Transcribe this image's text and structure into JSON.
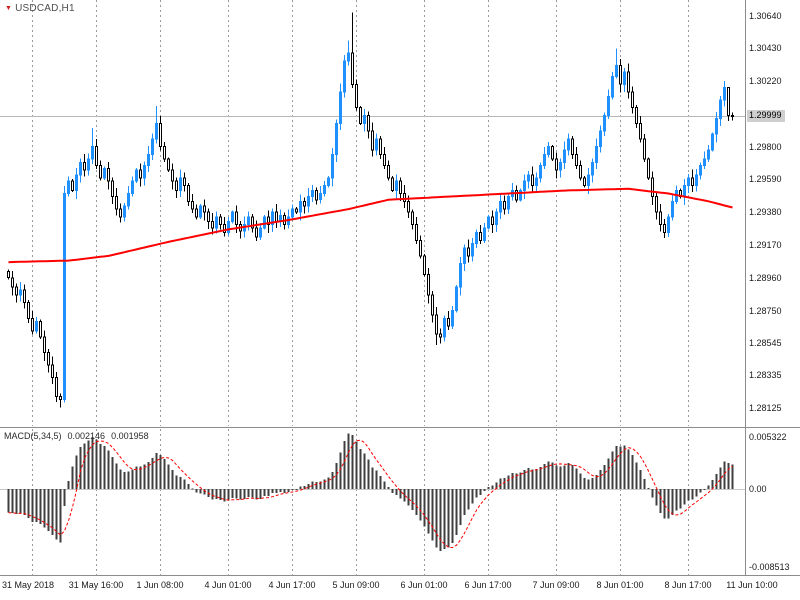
{
  "icons": {
    "symbol_arrow_char": "▼"
  },
  "colors": {
    "background": "#ffffff",
    "bull_candle": "#1e90ff",
    "bear_candle_fill": "#ffffff",
    "bear_candle_border": "#000000",
    "ma_line": "#ff0000",
    "macd_histogram": "#3f3f3f",
    "macd_signal": "#ff0000",
    "grid": "#9a9a9a",
    "separator": "#8c8c8c",
    "axis_text": "#1a1a1a",
    "current_price_line": "#b8b8b8",
    "current_price_label_bg": "#cfcfcf",
    "symbol_text": "#4d4d4d",
    "symbol_arrow": "#d02020"
  },
  "chart_data": {
    "type": "candlestick",
    "symbol": "USDCAD",
    "timeframe": "H1",
    "title": "USDCAD,H1",
    "grid": "vertical-dashed",
    "price_axis": {
      "side": "right",
      "range": [
        1.2801,
        1.3074
      ],
      "tick_labels": [
        "1.30640",
        "1.30430",
        "1.30220",
        "1.29800",
        "1.29590",
        "1.29380",
        "1.29170",
        "1.28960",
        "1.28750",
        "1.28545",
        "1.28335",
        "1.28125"
      ],
      "current_price": "1.29999"
    },
    "time_axis": {
      "ticks": [
        {
          "text": "31 May 2018",
          "bar": 6
        },
        {
          "text": "31 May 16:00",
          "bar": 22
        },
        {
          "text": "1 Jun 08:00",
          "bar": 38
        },
        {
          "text": "4 Jun 01:00",
          "bar": 55
        },
        {
          "text": "4 Jun 17:00",
          "bar": 71
        },
        {
          "text": "5 Jun 09:00",
          "bar": 87
        },
        {
          "text": "6 Jun 01:00",
          "bar": 104
        },
        {
          "text": "6 Jun 17:00",
          "bar": 120
        },
        {
          "text": "7 Jun 09:00",
          "bar": 137
        },
        {
          "text": "8 Jun 01:00",
          "bar": 153
        },
        {
          "text": "8 Jun 17:00",
          "bar": 170
        },
        {
          "text": "11 Jun 10:00",
          "bar": 186
        }
      ]
    },
    "series": {
      "first_open": 1.29,
      "default_wick": 0.0006,
      "closes": [
        1.2896,
        1.289,
        1.2885,
        1.2888,
        1.288,
        1.287,
        1.2862,
        1.2868,
        1.2858,
        1.2848,
        1.284,
        1.2832,
        1.282,
        1.2818,
        1.295,
        1.2958,
        1.2952,
        1.2962,
        1.297,
        1.2965,
        1.2972,
        1.298,
        1.2968,
        1.296,
        1.2966,
        1.2958,
        1.2948,
        1.294,
        1.2935,
        1.2942,
        1.295,
        1.2958,
        1.2965,
        1.296,
        1.2968,
        1.2975,
        1.2985,
        1.2995,
        1.298,
        1.2972,
        1.2965,
        1.2958,
        1.2952,
        1.296,
        1.2955,
        1.2945,
        1.294,
        1.2935,
        1.2942,
        1.2938,
        1.2932,
        1.2928,
        1.2935,
        1.293,
        1.2925,
        1.2932,
        1.2938,
        1.293,
        1.2926,
        1.293,
        1.2935,
        1.2928,
        1.2922,
        1.2928,
        1.2935,
        1.293,
        1.2938,
        1.2932,
        1.2936,
        1.293,
        1.2935,
        1.294,
        1.2938,
        1.2945,
        1.2942,
        1.2948,
        1.2952,
        1.2946,
        1.295,
        1.2955,
        1.296,
        1.2975,
        1.2995,
        1.3015,
        1.3035,
        1.304,
        1.302,
        1.3005,
        1.2995,
        1.3,
        1.299,
        1.2978,
        1.2985,
        1.2975,
        1.2968,
        1.296,
        1.2952,
        1.2958,
        1.295,
        1.2945,
        1.2938,
        1.293,
        1.292,
        1.291,
        1.2898,
        1.2885,
        1.2872,
        1.286,
        1.2858,
        1.287,
        1.2865,
        1.2875,
        1.289,
        1.2905,
        1.2915,
        1.291,
        1.2918,
        1.2925,
        1.292,
        1.2928,
        1.2935,
        1.293,
        1.2938,
        1.2945,
        1.294,
        1.2948,
        1.2952,
        1.2946,
        1.2952,
        1.2958,
        1.2962,
        1.2955,
        1.296,
        1.2968,
        1.2975,
        1.298,
        1.2972,
        1.2965,
        1.297,
        1.2978,
        1.2985,
        1.2975,
        1.2968,
        1.296,
        1.2955,
        1.2962,
        1.297,
        1.298,
        1.299,
        1.3,
        1.3012,
        1.3025,
        1.3032,
        1.302,
        1.3028,
        1.3015,
        1.3005,
        1.2995,
        1.2985,
        1.2972,
        1.296,
        1.2948,
        1.2938,
        1.293,
        1.2925,
        1.2935,
        1.2945,
        1.2952,
        1.2948,
        1.2955,
        1.296,
        1.2955,
        1.2962,
        1.2968,
        1.2972,
        1.2978,
        1.2988,
        1.2998,
        1.301,
        1.3018,
        1.3,
        1.29999
      ],
      "wick_overrides": {
        "13": {
          "low": 1.2813
        },
        "14": {
          "low": 1.2816
        },
        "21": {
          "high": 1.2992
        },
        "37": {
          "high": 1.3006
        },
        "85": {
          "high": 1.3048
        },
        "86": {
          "high": 1.3066
        },
        "107": {
          "low": 1.2853
        },
        "108": {
          "low": 1.2854
        },
        "152": {
          "high": 1.3043
        },
        "179": {
          "high": 1.3022
        },
        "180": {
          "high": 1.3015
        }
      }
    },
    "overlays": {
      "ma": {
        "name": "moving-average-red",
        "points": [
          [
            0,
            1.2906
          ],
          [
            15,
            1.2907
          ],
          [
            25,
            1.291
          ],
          [
            40,
            1.2919
          ],
          [
            55,
            1.2927
          ],
          [
            70,
            1.2933
          ],
          [
            85,
            1.294
          ],
          [
            95,
            1.2946
          ],
          [
            110,
            1.2948
          ],
          [
            125,
            1.295
          ],
          [
            140,
            1.2952
          ],
          [
            155,
            1.2953
          ],
          [
            165,
            1.295
          ],
          [
            175,
            1.2945
          ],
          [
            181,
            1.2941
          ]
        ]
      }
    },
    "indicator_pane": {
      "name": "MACD(5,34,5)",
      "params": [
        5,
        34,
        5
      ],
      "value_main": "0.002146",
      "value_signal": "0.001958",
      "axis_labels": [
        "0.005322",
        "0.00",
        "-0.008513"
      ],
      "style": "histogram-with-dashed-signal"
    }
  }
}
